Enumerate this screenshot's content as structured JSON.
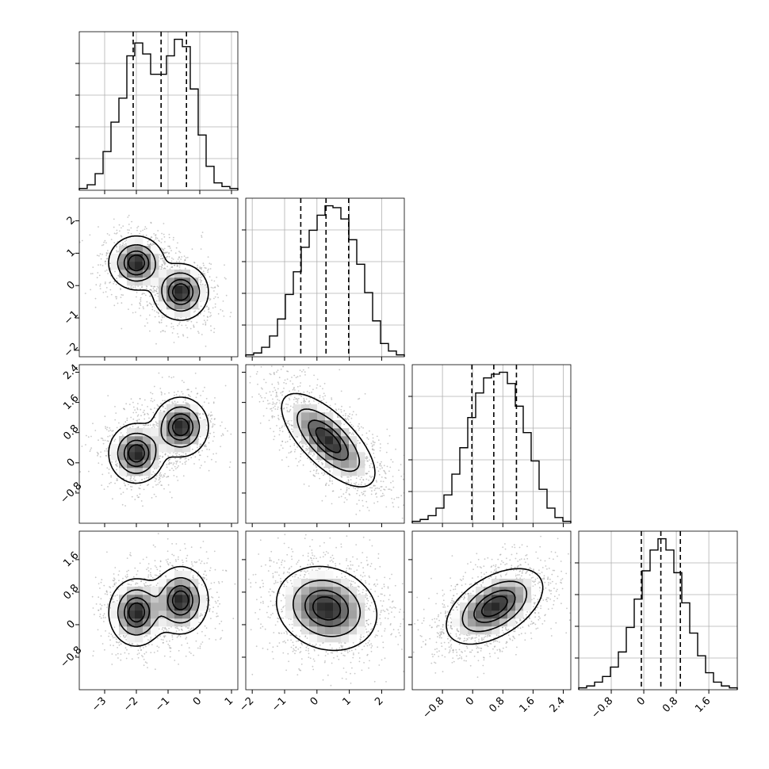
{
  "chart_data": {
    "type": "corner",
    "title": "",
    "n_params": 4,
    "colors": {
      "hist": "#000000",
      "grid": "#b0b0b0",
      "scatter": "#9a9a9a",
      "density": "#222222",
      "frame": "#000000"
    },
    "grid": true,
    "histograms": [
      {
        "name": "",
        "xlim": [
          -3.8,
          1.2
        ],
        "bins": [
          -3.8,
          -3.55,
          -3.3,
          -3.05,
          -2.8,
          -2.55,
          -2.3,
          -2.05,
          -1.8,
          -1.55,
          -1.3,
          -1.05,
          -0.8,
          -0.55,
          -0.3,
          -0.05,
          0.2,
          0.45,
          0.7,
          0.95,
          1.2
        ],
        "counts": [
          1,
          3,
          9,
          21,
          37,
          50,
          73,
          80,
          74,
          63,
          63,
          73,
          82,
          78,
          55,
          30,
          13,
          4,
          2,
          1
        ],
        "quantiles": [
          -2.1,
          -1.22,
          -0.42
        ],
        "x_ticks": [
          -3,
          -2,
          -1,
          0,
          1
        ]
      },
      {
        "name": "",
        "xlim": [
          -2.2,
          2.7
        ],
        "bins": [
          -2.2,
          -1.955,
          -1.71,
          -1.465,
          -1.22,
          -0.975,
          -0.73,
          -0.485,
          -0.24,
          0.005,
          0.25,
          0.495,
          0.74,
          0.985,
          1.23,
          1.475,
          1.72,
          1.965,
          2.21,
          2.455,
          2.7
        ],
        "counts": [
          1,
          2,
          5,
          11,
          20,
          33,
          45,
          58,
          67,
          75,
          80,
          79,
          73,
          62,
          49,
          34,
          19,
          7,
          3,
          1
        ],
        "quantiles": [
          -0.5,
          0.28,
          0.98
        ],
        "x_ticks": [
          -2,
          -1,
          0,
          1,
          2
        ]
      },
      {
        "name": "",
        "xlim": [
          -1.6,
          2.6
        ],
        "bins": [
          -1.6,
          -1.39,
          -1.18,
          -0.97,
          -0.76,
          -0.55,
          -0.34,
          -0.13,
          0.08,
          0.29,
          0.5,
          0.71,
          0.92,
          1.13,
          1.34,
          1.55,
          1.76,
          1.97,
          2.18,
          2.39,
          2.6
        ],
        "counts": [
          1,
          2,
          4,
          8,
          15,
          26,
          40,
          56,
          69,
          77,
          79,
          80,
          74,
          62,
          48,
          33,
          18,
          8,
          3,
          1
        ],
        "quantiles": [
          -0.02,
          0.56,
          1.16
        ],
        "x_ticks": [
          -0.8,
          0.0,
          0.8,
          1.6,
          2.4
        ]
      },
      {
        "name": "",
        "xlim": [
          -1.6,
          2.3
        ],
        "bins": [
          -1.6,
          -1.405,
          -1.21,
          -1.015,
          -0.82,
          -0.625,
          -0.43,
          -0.235,
          -0.04,
          0.155,
          0.35,
          0.545,
          0.74,
          0.935,
          1.13,
          1.325,
          1.52,
          1.715,
          1.91,
          2.105,
          2.3
        ],
        "counts": [
          1,
          2,
          4,
          7,
          12,
          20,
          33,
          48,
          63,
          74,
          80,
          74,
          62,
          46,
          30,
          18,
          9,
          4,
          2,
          1
        ],
        "quantiles": [
          -0.06,
          0.42,
          0.9
        ],
        "x_ticks": [
          -0.8,
          0.0,
          0.8,
          1.6
        ]
      }
    ],
    "y_ticks": [
      null,
      [
        -2,
        -1,
        0,
        1,
        2
      ],
      [
        -0.8,
        0.0,
        0.8,
        1.6,
        2.4
      ],
      [
        -0.8,
        0.0,
        0.8,
        1.6
      ]
    ],
    "panels": [
      {
        "row": 1,
        "col": 0,
        "components": [
          {
            "mx": -2.0,
            "my": 0.7,
            "sx": 0.42,
            "sy": 0.4,
            "rho": 0.0,
            "w": 0.5
          },
          {
            "mx": -0.6,
            "my": -0.2,
            "sx": 0.42,
            "sy": 0.42,
            "rho": 0.0,
            "w": 0.5
          }
        ]
      },
      {
        "row": 2,
        "col": 0,
        "components": [
          {
            "mx": -2.0,
            "my": 0.25,
            "sx": 0.42,
            "sy": 0.38,
            "rho": 0.0,
            "w": 0.5
          },
          {
            "mx": -0.6,
            "my": 0.95,
            "sx": 0.42,
            "sy": 0.38,
            "rho": 0.0,
            "w": 0.5
          }
        ]
      },
      {
        "row": 2,
        "col": 1,
        "components": [
          {
            "mx": 0.35,
            "my": 0.6,
            "sx": 0.7,
            "sy": 0.6,
            "rho": -0.7,
            "w": 1.0
          }
        ]
      },
      {
        "row": 3,
        "col": 0,
        "components": [
          {
            "mx": -2.0,
            "my": 0.3,
            "sx": 0.42,
            "sy": 0.4,
            "rho": 0.0,
            "w": 0.5
          },
          {
            "mx": -0.6,
            "my": 0.6,
            "sx": 0.42,
            "sy": 0.4,
            "rho": 0.0,
            "w": 0.5
          }
        ]
      },
      {
        "row": 3,
        "col": 1,
        "components": [
          {
            "mx": 0.3,
            "my": 0.4,
            "sx": 0.75,
            "sy": 0.5,
            "rho": -0.15,
            "w": 1.0
          }
        ]
      },
      {
        "row": 3,
        "col": 2,
        "components": [
          {
            "mx": 0.58,
            "my": 0.45,
            "sx": 0.62,
            "sy": 0.45,
            "rho": 0.5,
            "w": 1.0
          }
        ]
      }
    ],
    "density_levels": [
      0.12,
      0.39,
      0.68,
      0.86
    ]
  }
}
